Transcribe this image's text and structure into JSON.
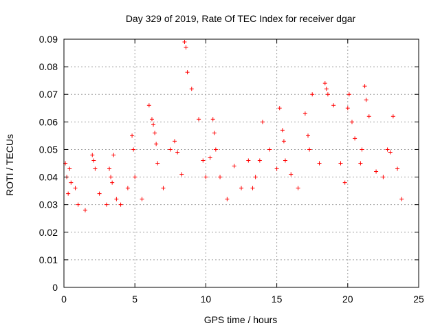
{
  "chart_data": {
    "type": "scatter",
    "title": "Day 329 of 2019, Rate Of TEC Index for receiver dgar",
    "xlabel": "GPS time / hours",
    "ylabel": "ROTI / TECUs",
    "xlim": [
      0,
      25
    ],
    "ylim": [
      0,
      0.09
    ],
    "xticks": [
      "0",
      "5",
      "10",
      "15",
      "20",
      "25"
    ],
    "yticks": [
      "0",
      "0.01",
      "0.02",
      "0.03",
      "0.04",
      "0.05",
      "0.06",
      "0.07",
      "0.08",
      "0.09"
    ],
    "grid": true,
    "marker": "plus",
    "color": "#ff0000",
    "series": [
      {
        "x": [
          0.1,
          0.2,
          0.3,
          0.4,
          0.5,
          0.8,
          1.0,
          1.5,
          2.0,
          2.1,
          2.2,
          2.5,
          3.0,
          3.2,
          3.3,
          3.4,
          3.5,
          3.7,
          4.0,
          4.5,
          4.8,
          4.9,
          5.0,
          5.5,
          6.0,
          6.2,
          6.3,
          6.4,
          6.5,
          6.6,
          7.0,
          7.5,
          7.8,
          8.0,
          8.3,
          8.5,
          8.6,
          8.7,
          9.0,
          9.5,
          9.8,
          10.0,
          10.3,
          10.5,
          10.6,
          10.7,
          11.0,
          11.5,
          12.0,
          12.5,
          13.0,
          13.3,
          13.5,
          13.8,
          14.0,
          14.5,
          15.0,
          15.2,
          15.4,
          15.5,
          15.6,
          16.0,
          16.5,
          17.0,
          17.2,
          17.3,
          17.5,
          18.0,
          18.4,
          18.5,
          18.6,
          19.0,
          19.5,
          19.8,
          20.0,
          20.1,
          20.3,
          20.5,
          20.9,
          21.0,
          21.2,
          21.3,
          21.5,
          22.0,
          22.5,
          22.8,
          23.0,
          23.2,
          23.5,
          23.8
        ],
        "y": [
          0.045,
          0.04,
          0.034,
          0.043,
          0.038,
          0.036,
          0.03,
          0.028,
          0.048,
          0.046,
          0.043,
          0.034,
          0.03,
          0.043,
          0.04,
          0.038,
          0.048,
          0.032,
          0.03,
          0.036,
          0.055,
          0.05,
          0.04,
          0.032,
          0.066,
          0.061,
          0.059,
          0.056,
          0.052,
          0.045,
          0.036,
          0.05,
          0.053,
          0.049,
          0.041,
          0.089,
          0.087,
          0.078,
          0.072,
          0.061,
          0.046,
          0.04,
          0.047,
          0.061,
          0.056,
          0.05,
          0.04,
          0.032,
          0.044,
          0.036,
          0.046,
          0.036,
          0.04,
          0.046,
          0.06,
          0.05,
          0.043,
          0.065,
          0.057,
          0.053,
          0.046,
          0.041,
          0.036,
          0.063,
          0.055,
          0.05,
          0.07,
          0.045,
          0.074,
          0.072,
          0.07,
          0.066,
          0.045,
          0.038,
          0.065,
          0.07,
          0.06,
          0.054,
          0.045,
          0.05,
          0.073,
          0.068,
          0.062,
          0.042,
          0.04,
          0.05,
          0.049,
          0.062,
          0.043,
          0.032
        ]
      }
    ]
  }
}
